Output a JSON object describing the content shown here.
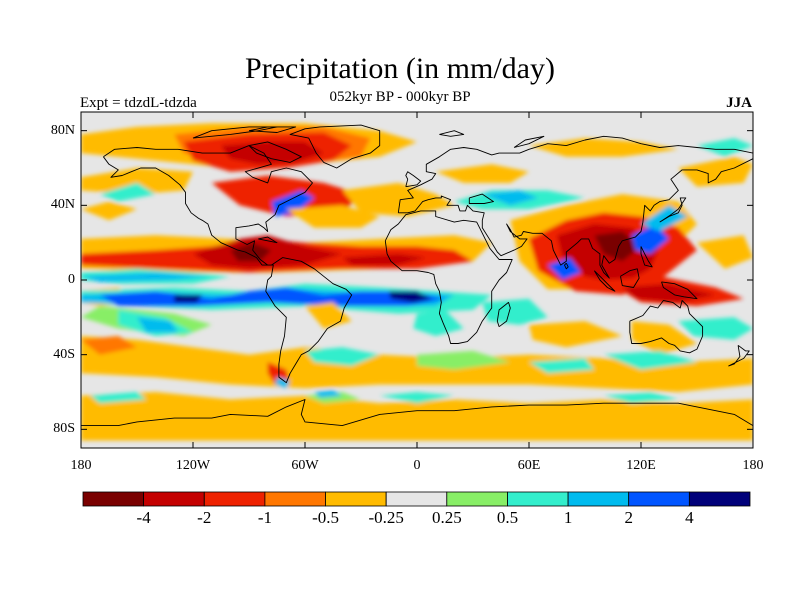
{
  "title": "Precipitation (in mm/day)",
  "subtitle": "052kyr BP - 000kyr BP",
  "left_label": "Expt = tdzdL-tdzda",
  "right_label": "JJA",
  "y_ticks": [
    {
      "label": "80N",
      "lat": 80
    },
    {
      "label": "40N",
      "lat": 40
    },
    {
      "label": "0",
      "lat": 0
    },
    {
      "label": "40S",
      "lat": -40
    },
    {
      "label": "80S",
      "lat": -80
    }
  ],
  "x_ticks": [
    {
      "label": "180",
      "lon": -180
    },
    {
      "label": "120W",
      "lon": -120
    },
    {
      "label": "60W",
      "lon": -60
    },
    {
      "label": "0",
      "lon": 0
    },
    {
      "label": "60E",
      "lon": 60
    },
    {
      "label": "120E",
      "lon": 120
    },
    {
      "label": "180",
      "lon": 180
    }
  ],
  "colorbar": {
    "colors": [
      "#7a0000",
      "#c40000",
      "#ee2200",
      "#ff7700",
      "#ffbb00",
      "#e6e6e6",
      "#88ee66",
      "#33eecc",
      "#00bbee",
      "#0055ff",
      "#00007a"
    ],
    "labels": [
      "-4",
      "-2",
      "-1",
      "-0.5",
      "-0.25",
      "0.25",
      "0.5",
      "1",
      "2",
      "4"
    ]
  },
  "colors": {
    "neutral": "#e6e6e6",
    "orange": "#ffbb00",
    "dark_orange": "#ff7700",
    "red": "#ee2200",
    "dark_red": "#c40000",
    "maroon": "#7a0000",
    "green": "#88ee66",
    "cyan": "#33eecc",
    "sky": "#00bbee",
    "blue": "#0055ff",
    "navy": "#00007a",
    "coast": "#000000"
  }
}
